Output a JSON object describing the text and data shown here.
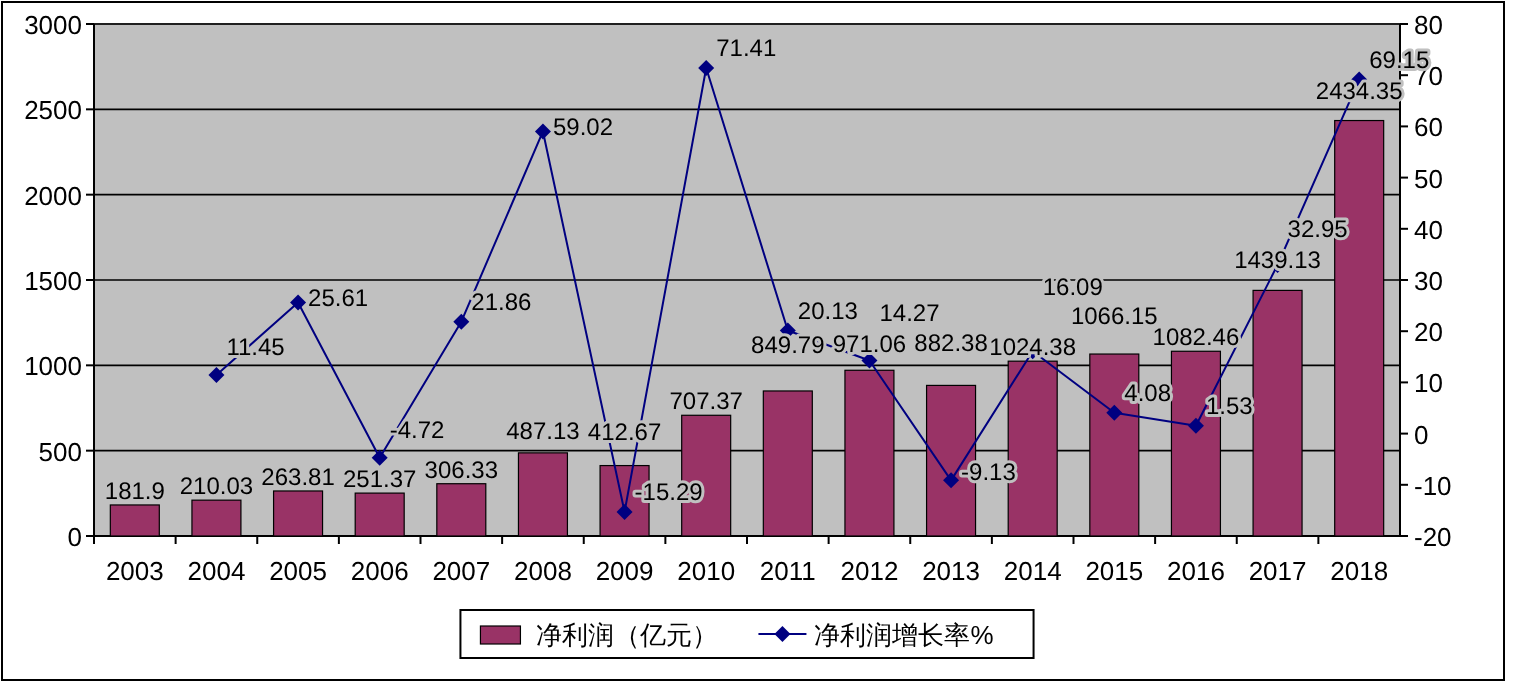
{
  "chart_data": {
    "type": "bar",
    "categories": [
      "2003",
      "2004",
      "2005",
      "2006",
      "2007",
      "2008",
      "2009",
      "2010",
      "2011",
      "2012",
      "2013",
      "2014",
      "2015",
      "2016",
      "2017",
      "2018"
    ],
    "series": [
      {
        "name": "净利润（亿元）",
        "color": "#993366",
        "values": [
          181.9,
          210.03,
          263.81,
          251.37,
          306.33,
          487.13,
          412.67,
          707.37,
          849.79,
          971.06,
          882.38,
          1024.38,
          1066.15,
          1082.46,
          1439.13,
          2434.35
        ]
      },
      {
        "name": "净利润增长率%",
        "type": "line",
        "axis": "y2",
        "color": "#000080",
        "marker": "diamond",
        "values": [
          null,
          11.45,
          25.61,
          -4.72,
          21.86,
          59.02,
          -15.29,
          71.41,
          20.13,
          14.27,
          -9.13,
          16.09,
          4.08,
          1.53,
          32.95,
          69.15
        ]
      }
    ],
    "ylim": [
      0,
      3000
    ],
    "yticks": [
      0,
      500,
      1000,
      1500,
      2000,
      2500,
      3000
    ],
    "y2lim": [
      -20,
      80
    ],
    "y2ticks": [
      -20,
      -10,
      0,
      10,
      20,
      30,
      40,
      50,
      60,
      70,
      80
    ],
    "grid": "y",
    "legend": "bottom",
    "data_labels": true
  }
}
